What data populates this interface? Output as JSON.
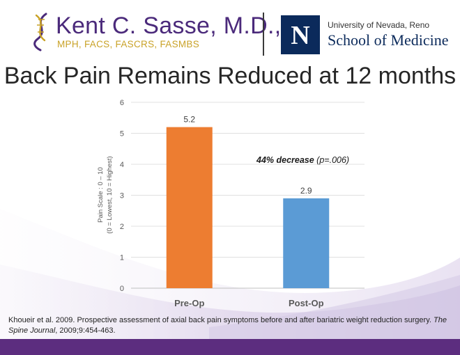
{
  "header": {
    "brand_name": "Kent C. Sasse, M.D.,",
    "brand_credentials": "MPH, FACS, FASCRS, FASMBS",
    "university_line": "University of Nevada, Reno",
    "school_line": "School of Medicine",
    "unr_logo_letter": "N"
  },
  "slide": {
    "title": "Back Pain Remains Reduced at 12 months"
  },
  "chart_data": {
    "type": "bar",
    "categories": [
      "Pre-Op",
      "Post-Op"
    ],
    "values": [
      5.2,
      2.9
    ],
    "data_labels": [
      "5.2",
      "2.9"
    ],
    "bar_colors": [
      "#ed7d31",
      "#5b9bd5"
    ],
    "ylabel_lines": [
      "Pain Scale : 0 – 10",
      "(0 = Lowest, 10 = Highest)"
    ],
    "ylim": [
      0,
      6
    ],
    "yticks": [
      0,
      1,
      2,
      3,
      4,
      5,
      6
    ],
    "grid": true,
    "annotation": {
      "bold": "44% decrease",
      "rest": " (p=.006)"
    }
  },
  "citation": {
    "text": "Khoueir et al. 2009. Prospective assessment of axial back pain symptoms before and after bariatric weight reduction surgery. ",
    "journal": "The Spine Journal",
    "tail": ", 2009;9:454-463."
  },
  "colors": {
    "brand_purple": "#4b2a7b",
    "brand_gold": "#c9a227",
    "unr_navy": "#0b2a5b",
    "footer_purple": "#5c2d7f"
  }
}
